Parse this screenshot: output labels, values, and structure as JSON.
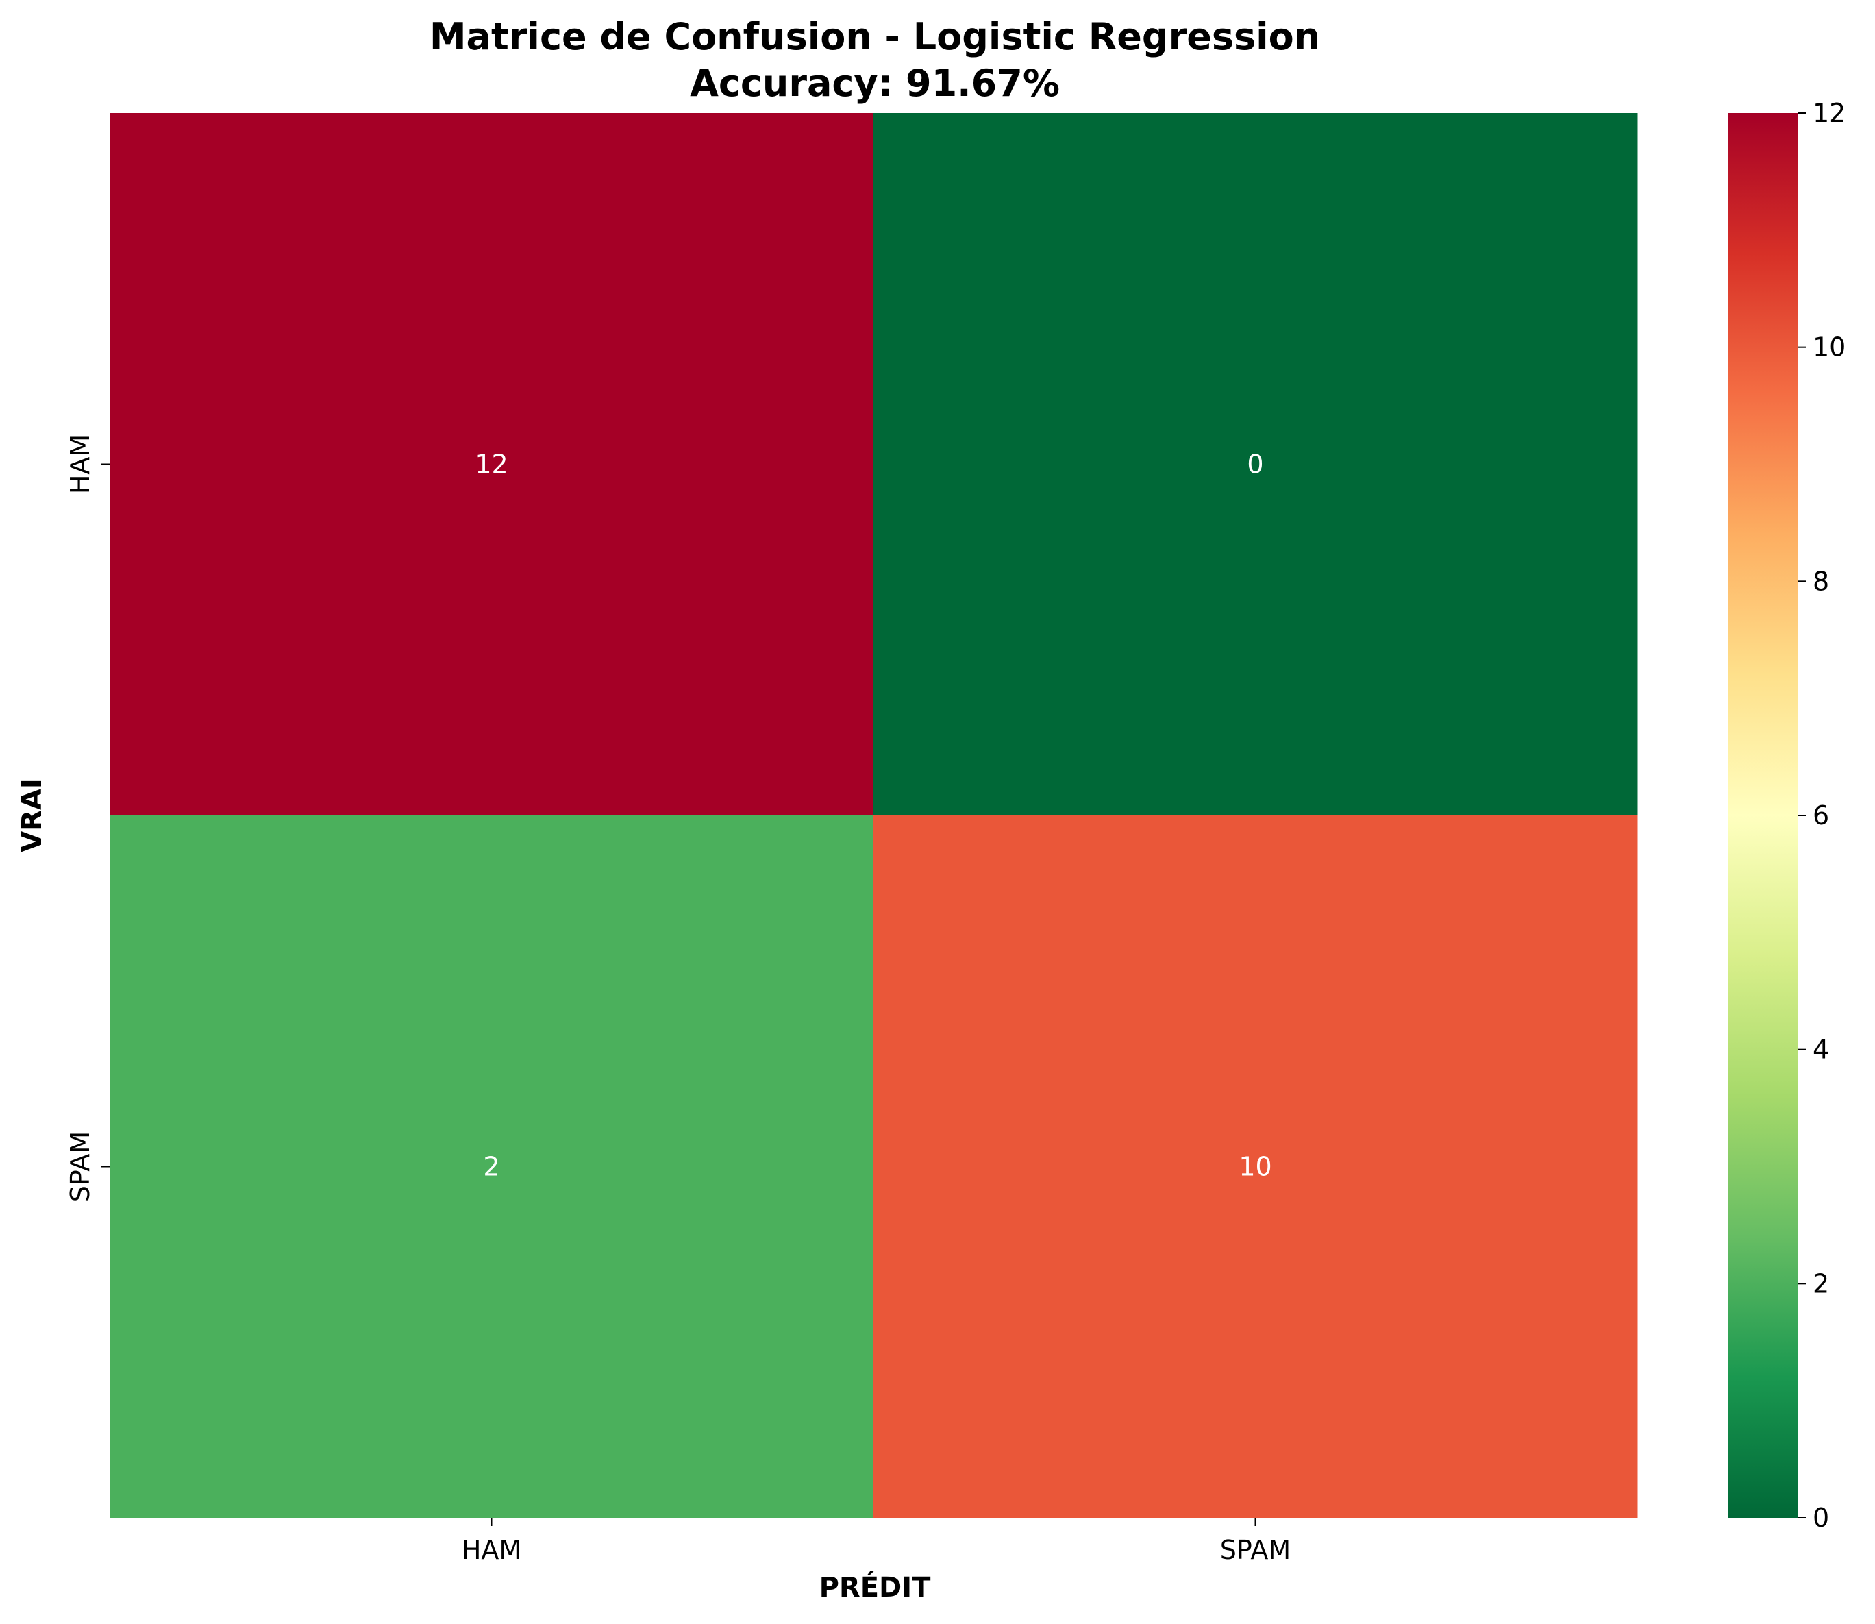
{
  "chart_data": {
    "type": "heatmap",
    "title": "Matrice de Confusion - Logistic Regression",
    "subtitle": "Accuracy: 91.67%",
    "xlabel": "PRÉDIT",
    "ylabel": "VRAI",
    "x_categories": [
      "HAM",
      "SPAM"
    ],
    "y_categories": [
      "HAM",
      "SPAM"
    ],
    "values": [
      [
        12,
        0
      ],
      [
        2,
        10
      ]
    ],
    "colormap": "RdYlGn_r",
    "colorbar": {
      "min": 0,
      "max": 12,
      "ticks": [
        "0",
        "2",
        "4",
        "6",
        "8",
        "10",
        "12"
      ]
    },
    "colors": {
      "cell_12": "#a50026",
      "cell_0": "#006837",
      "cell_2": "#4bb05c",
      "cell_10": "#ea5739"
    }
  }
}
